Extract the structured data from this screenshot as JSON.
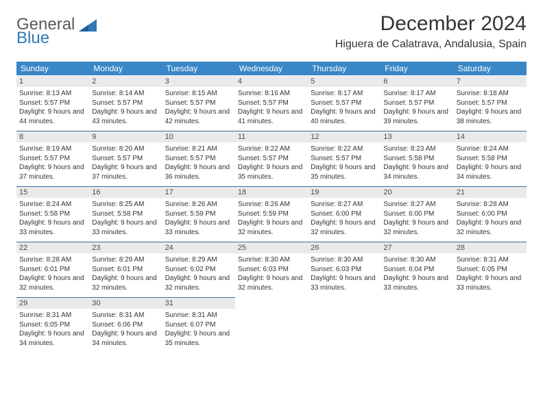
{
  "logo": {
    "line1": "General",
    "line2": "Blue",
    "color_general": "#57585a",
    "color_blue": "#2e79b5",
    "shape_color": "#2e79b5"
  },
  "title": "December 2024",
  "location": "Higuera de Calatrava, Andalusia, Spain",
  "colors": {
    "header_bg": "#3a87c7",
    "header_text": "#ffffff",
    "date_bar_bg": "#e9eaeb",
    "date_bar_border": "#3a6d9a",
    "body_text": "#333333",
    "page_bg": "#ffffff"
  },
  "fonts": {
    "title_size": 30,
    "location_size": 16,
    "day_header_size": 12,
    "date_size": 11,
    "cell_size": 10
  },
  "day_names": [
    "Sunday",
    "Monday",
    "Tuesday",
    "Wednesday",
    "Thursday",
    "Friday",
    "Saturday"
  ],
  "weeks": [
    [
      {
        "date": "1",
        "sunrise": "Sunrise: 8:13 AM",
        "sunset": "Sunset: 5:57 PM",
        "daylight": "Daylight: 9 hours and 44 minutes."
      },
      {
        "date": "2",
        "sunrise": "Sunrise: 8:14 AM",
        "sunset": "Sunset: 5:57 PM",
        "daylight": "Daylight: 9 hours and 43 minutes."
      },
      {
        "date": "3",
        "sunrise": "Sunrise: 8:15 AM",
        "sunset": "Sunset: 5:57 PM",
        "daylight": "Daylight: 9 hours and 42 minutes."
      },
      {
        "date": "4",
        "sunrise": "Sunrise: 8:16 AM",
        "sunset": "Sunset: 5:57 PM",
        "daylight": "Daylight: 9 hours and 41 minutes."
      },
      {
        "date": "5",
        "sunrise": "Sunrise: 8:17 AM",
        "sunset": "Sunset: 5:57 PM",
        "daylight": "Daylight: 9 hours and 40 minutes."
      },
      {
        "date": "6",
        "sunrise": "Sunrise: 8:17 AM",
        "sunset": "Sunset: 5:57 PM",
        "daylight": "Daylight: 9 hours and 39 minutes."
      },
      {
        "date": "7",
        "sunrise": "Sunrise: 8:18 AM",
        "sunset": "Sunset: 5:57 PM",
        "daylight": "Daylight: 9 hours and 38 minutes."
      }
    ],
    [
      {
        "date": "8",
        "sunrise": "Sunrise: 8:19 AM",
        "sunset": "Sunset: 5:57 PM",
        "daylight": "Daylight: 9 hours and 37 minutes."
      },
      {
        "date": "9",
        "sunrise": "Sunrise: 8:20 AM",
        "sunset": "Sunset: 5:57 PM",
        "daylight": "Daylight: 9 hours and 37 minutes."
      },
      {
        "date": "10",
        "sunrise": "Sunrise: 8:21 AM",
        "sunset": "Sunset: 5:57 PM",
        "daylight": "Daylight: 9 hours and 36 minutes."
      },
      {
        "date": "11",
        "sunrise": "Sunrise: 8:22 AM",
        "sunset": "Sunset: 5:57 PM",
        "daylight": "Daylight: 9 hours and 35 minutes."
      },
      {
        "date": "12",
        "sunrise": "Sunrise: 8:22 AM",
        "sunset": "Sunset: 5:57 PM",
        "daylight": "Daylight: 9 hours and 35 minutes."
      },
      {
        "date": "13",
        "sunrise": "Sunrise: 8:23 AM",
        "sunset": "Sunset: 5:58 PM",
        "daylight": "Daylight: 9 hours and 34 minutes."
      },
      {
        "date": "14",
        "sunrise": "Sunrise: 8:24 AM",
        "sunset": "Sunset: 5:58 PM",
        "daylight": "Daylight: 9 hours and 34 minutes."
      }
    ],
    [
      {
        "date": "15",
        "sunrise": "Sunrise: 8:24 AM",
        "sunset": "Sunset: 5:58 PM",
        "daylight": "Daylight: 9 hours and 33 minutes."
      },
      {
        "date": "16",
        "sunrise": "Sunrise: 8:25 AM",
        "sunset": "Sunset: 5:58 PM",
        "daylight": "Daylight: 9 hours and 33 minutes."
      },
      {
        "date": "17",
        "sunrise": "Sunrise: 8:26 AM",
        "sunset": "Sunset: 5:59 PM",
        "daylight": "Daylight: 9 hours and 33 minutes."
      },
      {
        "date": "18",
        "sunrise": "Sunrise: 8:26 AM",
        "sunset": "Sunset: 5:59 PM",
        "daylight": "Daylight: 9 hours and 32 minutes."
      },
      {
        "date": "19",
        "sunrise": "Sunrise: 8:27 AM",
        "sunset": "Sunset: 6:00 PM",
        "daylight": "Daylight: 9 hours and 32 minutes."
      },
      {
        "date": "20",
        "sunrise": "Sunrise: 8:27 AM",
        "sunset": "Sunset: 6:00 PM",
        "daylight": "Daylight: 9 hours and 32 minutes."
      },
      {
        "date": "21",
        "sunrise": "Sunrise: 8:28 AM",
        "sunset": "Sunset: 6:00 PM",
        "daylight": "Daylight: 9 hours and 32 minutes."
      }
    ],
    [
      {
        "date": "22",
        "sunrise": "Sunrise: 8:28 AM",
        "sunset": "Sunset: 6:01 PM",
        "daylight": "Daylight: 9 hours and 32 minutes."
      },
      {
        "date": "23",
        "sunrise": "Sunrise: 8:29 AM",
        "sunset": "Sunset: 6:01 PM",
        "daylight": "Daylight: 9 hours and 32 minutes."
      },
      {
        "date": "24",
        "sunrise": "Sunrise: 8:29 AM",
        "sunset": "Sunset: 6:02 PM",
        "daylight": "Daylight: 9 hours and 32 minutes."
      },
      {
        "date": "25",
        "sunrise": "Sunrise: 8:30 AM",
        "sunset": "Sunset: 6:03 PM",
        "daylight": "Daylight: 9 hours and 32 minutes."
      },
      {
        "date": "26",
        "sunrise": "Sunrise: 8:30 AM",
        "sunset": "Sunset: 6:03 PM",
        "daylight": "Daylight: 9 hours and 33 minutes."
      },
      {
        "date": "27",
        "sunrise": "Sunrise: 8:30 AM",
        "sunset": "Sunset: 6:04 PM",
        "daylight": "Daylight: 9 hours and 33 minutes."
      },
      {
        "date": "28",
        "sunrise": "Sunrise: 8:31 AM",
        "sunset": "Sunset: 6:05 PM",
        "daylight": "Daylight: 9 hours and 33 minutes."
      }
    ],
    [
      {
        "date": "29",
        "sunrise": "Sunrise: 8:31 AM",
        "sunset": "Sunset: 6:05 PM",
        "daylight": "Daylight: 9 hours and 34 minutes."
      },
      {
        "date": "30",
        "sunrise": "Sunrise: 8:31 AM",
        "sunset": "Sunset: 6:06 PM",
        "daylight": "Daylight: 9 hours and 34 minutes."
      },
      {
        "date": "31",
        "sunrise": "Sunrise: 8:31 AM",
        "sunset": "Sunset: 6:07 PM",
        "daylight": "Daylight: 9 hours and 35 minutes."
      },
      null,
      null,
      null,
      null
    ]
  ]
}
